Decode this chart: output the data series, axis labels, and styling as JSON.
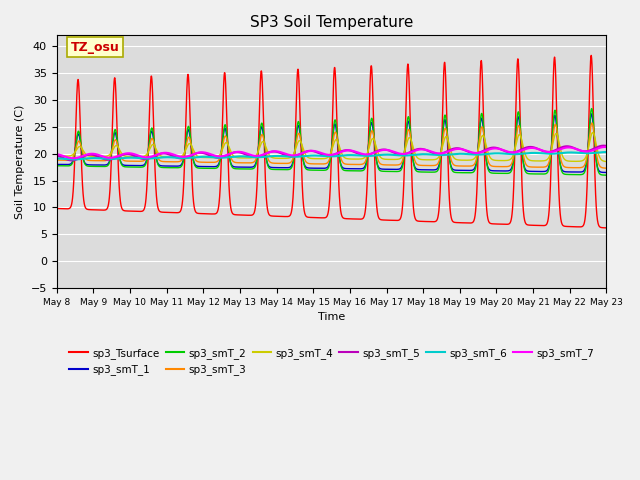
{
  "title": "SP3 Soil Temperature",
  "xlabel": "Time",
  "ylabel": "Soil Temperature (C)",
  "ylim": [
    -5,
    42
  ],
  "yticks": [
    -5,
    0,
    5,
    10,
    15,
    20,
    25,
    30,
    35,
    40
  ],
  "xlim_days": [
    0,
    15
  ],
  "xtick_labels": [
    "May 8",
    "May 9",
    "May 10",
    "May 11",
    "May 12",
    "May 13",
    "May 14",
    "May 15",
    "May 16",
    "May 17",
    "May 18",
    "May 19",
    "May 20",
    "May 21",
    "May 22",
    "May 23"
  ],
  "annotation_text": "TZ_osu",
  "annotation_bg": "#FFFFCC",
  "annotation_color": "#CC0000",
  "plot_bg": "#DCDCDC",
  "fig_bg": "#F0F0F0",
  "series_colors": {
    "sp3_Tsurface": "#FF0000",
    "sp3_smT_1": "#0000CC",
    "sp3_smT_2": "#00CC00",
    "sp3_smT_3": "#FF8800",
    "sp3_smT_4": "#CCCC00",
    "sp3_smT_5": "#BB00BB",
    "sp3_smT_6": "#00CCCC",
    "sp3_smT_7": "#FF00FF"
  }
}
